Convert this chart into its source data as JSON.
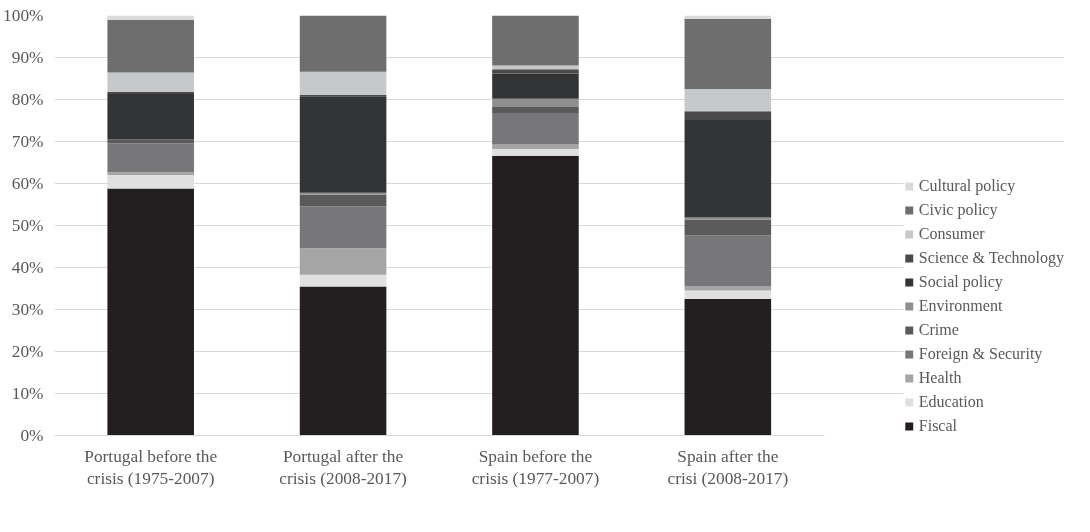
{
  "chart_data": {
    "type": "bar",
    "stacked": true,
    "categories": [
      "Portugal before the crisis (1975-2007)",
      "Portugal after the crisis (2008-2017)",
      "Spain before the crisis (1977-2007)",
      "Spain after the crisi (2008-2017)"
    ],
    "series": [
      {
        "name": "Fiscal",
        "color": "#231f20",
        "values": [
          58.8,
          35.5,
          66.6,
          32.5
        ]
      },
      {
        "name": "Education",
        "color": "#e0e0e0",
        "values": [
          3.2,
          2.8,
          1.6,
          2.0
        ]
      },
      {
        "name": "Health",
        "color": "#a5a5a5",
        "values": [
          0.7,
          6.3,
          1.1,
          1.0
        ]
      },
      {
        "name": "Foreign & Security",
        "color": "#77777a",
        "values": [
          6.8,
          9.9,
          7.5,
          12.2
        ]
      },
      {
        "name": "Crime",
        "color": "#5a5a5a",
        "values": [
          1.0,
          2.8,
          1.4,
          3.7
        ]
      },
      {
        "name": "Environment",
        "color": "#8f8f8f",
        "values": [
          0,
          0.5,
          2.0,
          0.5
        ]
      },
      {
        "name": "Social policy",
        "color": "#333436",
        "values": [
          10.8,
          23.0,
          6.0,
          23.2
        ]
      },
      {
        "name": "Science & Technology",
        "color": "#4a4a4a",
        "values": [
          0.5,
          0.3,
          1.0,
          2.1
        ]
      },
      {
        "name": "Consumer",
        "color": "#c7c8ca",
        "values": [
          4.6,
          5.5,
          0.9,
          5.3
        ]
      },
      {
        "name": "Civic policy",
        "color": "#6e6e6e",
        "values": [
          12.6,
          13.4,
          11.9,
          16.7
        ]
      },
      {
        "name": "Cultural policy",
        "color": "#dadada",
        "values": [
          1.0,
          0,
          0,
          0.8
        ]
      }
    ],
    "ylim": [
      0,
      100
    ],
    "yticks": [
      {
        "value": 0,
        "label": "0%"
      },
      {
        "value": 10,
        "label": "10%"
      },
      {
        "value": 20,
        "label": "20%"
      },
      {
        "value": 30,
        "label": "30%"
      },
      {
        "value": 40,
        "label": "40%"
      },
      {
        "value": 50,
        "label": "50%"
      },
      {
        "value": 60,
        "label": "60%"
      },
      {
        "value": 70,
        "label": "70%"
      },
      {
        "value": 80,
        "label": "80%"
      },
      {
        "value": 90,
        "label": "90%"
      },
      {
        "value": 100,
        "label": "100%"
      }
    ],
    "grid": "y",
    "legend": "right"
  }
}
